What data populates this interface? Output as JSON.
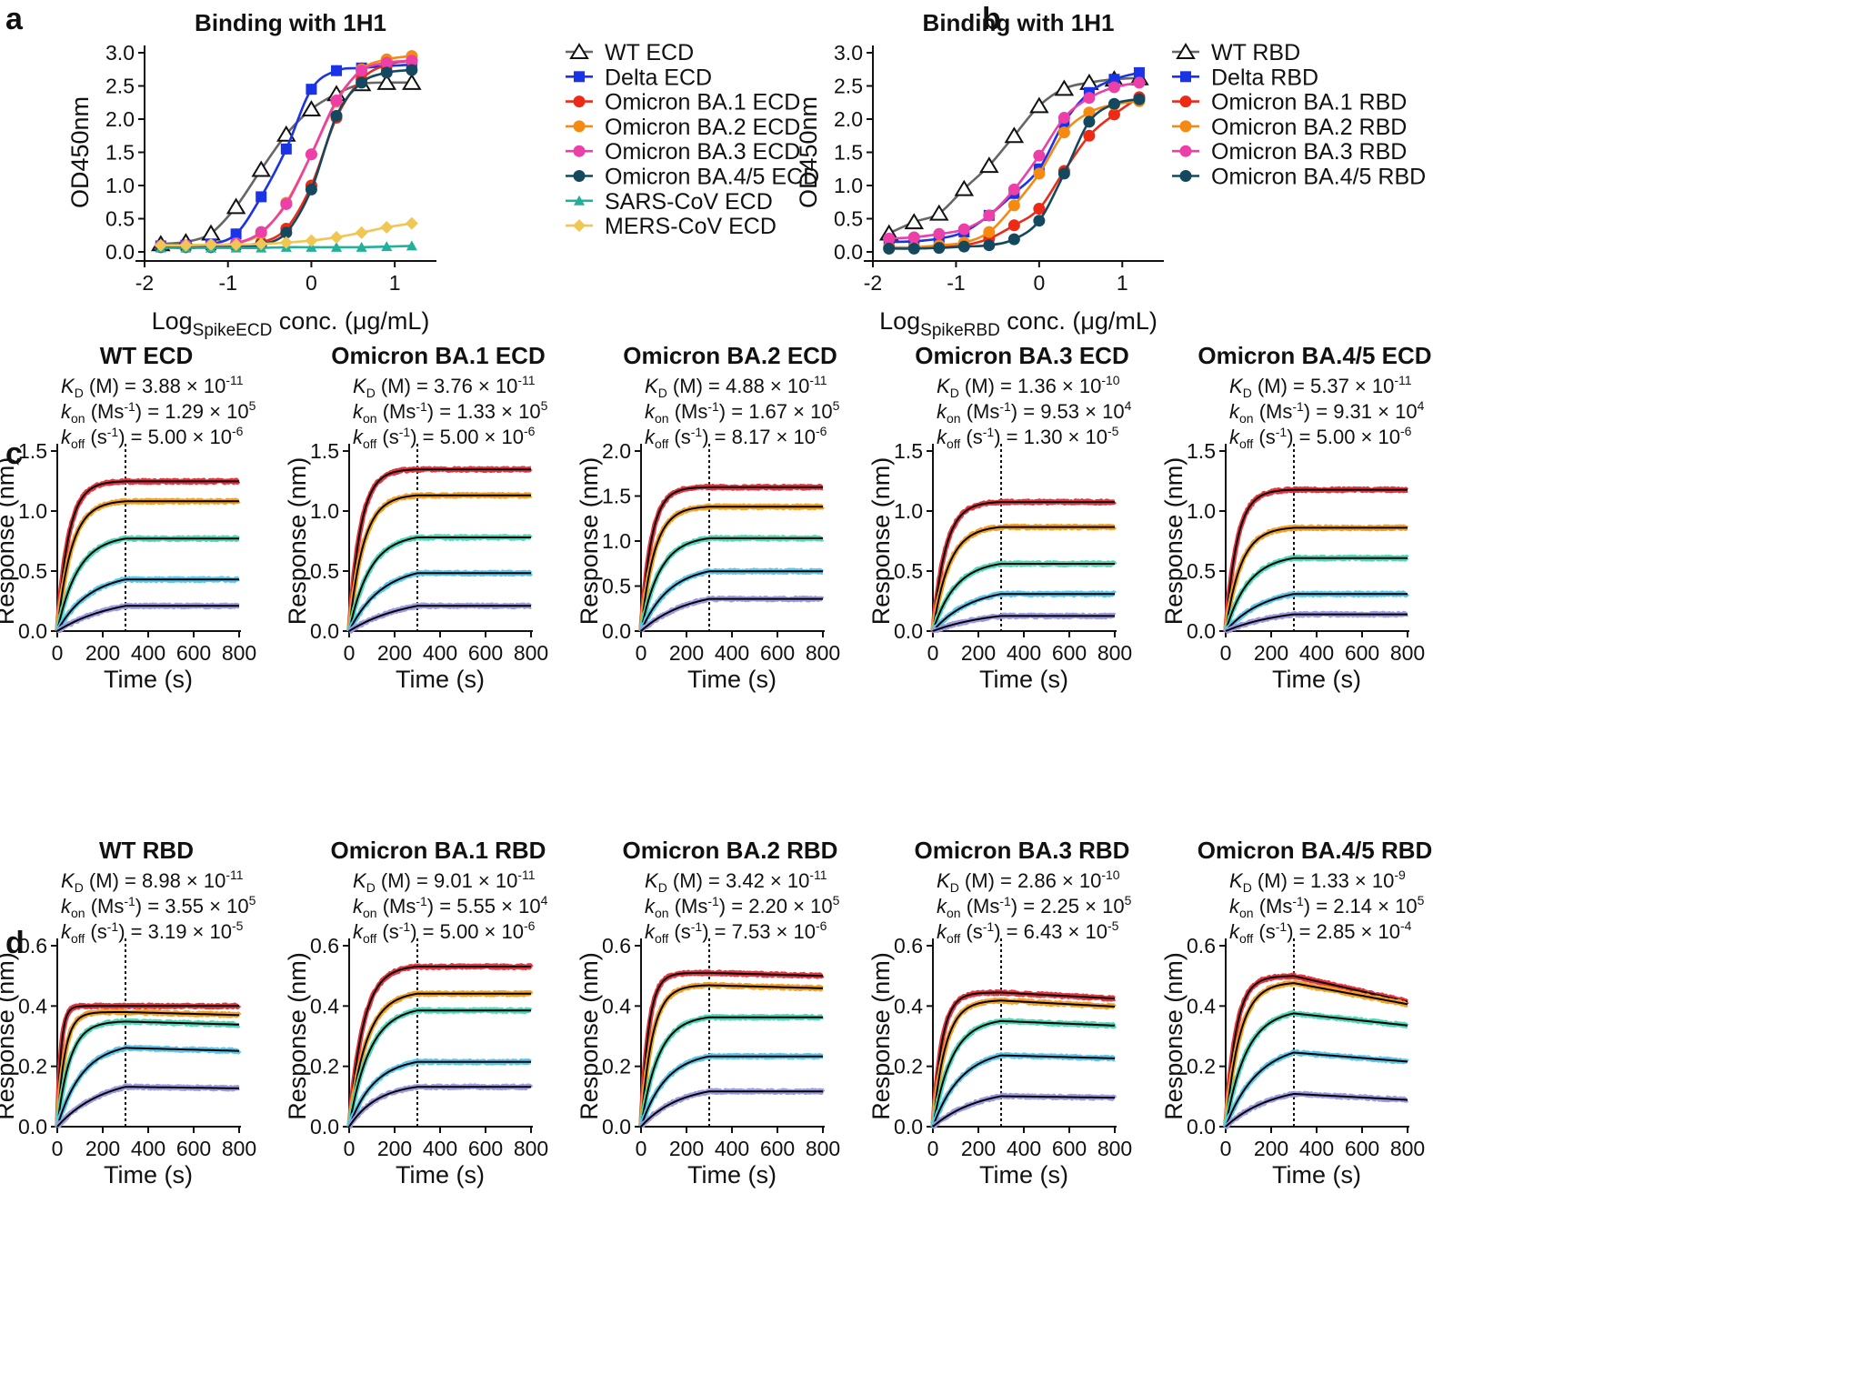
{
  "panel_labels": [
    "a",
    "b",
    "c",
    "d"
  ],
  "chart_data": [
    {
      "id": "a",
      "type": "line",
      "title": "Binding with 1H1",
      "xlabel_main": "Log",
      "xlabel_sub": "SpikeECD",
      "xlabel_tail": " conc. (μg/mL)",
      "ylabel": "OD450nm",
      "xlim": [
        -2,
        1.5
      ],
      "ylim": [
        0,
        3.0
      ],
      "xticks": [
        "-2",
        "-1",
        "0",
        "1"
      ],
      "yticks": [
        "0.0",
        "0.5",
        "1.0",
        "1.5",
        "2.0",
        "2.5",
        "3.0"
      ],
      "x": [
        -1.806,
        -1.505,
        -1.204,
        -0.903,
        -0.602,
        -0.301,
        0.0,
        0.301,
        0.602,
        0.903,
        1.204
      ],
      "series": [
        {
          "name": "WT ECD",
          "color": "#666666",
          "marker": "triangle-open",
          "values": [
            0.12,
            0.15,
            0.28,
            0.68,
            1.24,
            1.77,
            2.15,
            2.38,
            2.53,
            2.55,
            2.55
          ]
        },
        {
          "name": "Delta ECD",
          "color": "#1a33e6",
          "marker": "square",
          "values": [
            0.09,
            0.1,
            0.12,
            0.27,
            0.83,
            1.55,
            2.45,
            2.73,
            2.77,
            2.8,
            2.82
          ]
        },
        {
          "name": "Omicron BA.1 ECD",
          "color": "#ee2a17",
          "marker": "circle",
          "values": [
            0.08,
            0.08,
            0.09,
            0.1,
            0.14,
            0.35,
            1.0,
            2.02,
            2.6,
            2.82,
            2.88
          ]
        },
        {
          "name": "Omicron BA.2 ECD",
          "color": "#f48a12",
          "marker": "circle",
          "values": [
            0.08,
            0.09,
            0.1,
            0.13,
            0.28,
            0.74,
            1.47,
            2.26,
            2.75,
            2.9,
            2.95
          ]
        },
        {
          "name": "Omicron BA.3 ECD",
          "color": "#ec3fa7",
          "marker": "circle",
          "values": [
            0.09,
            0.1,
            0.1,
            0.13,
            0.3,
            0.72,
            1.47,
            2.28,
            2.73,
            2.85,
            2.88
          ]
        },
        {
          "name": "Omicron BA.4/5 ECD",
          "color": "#14485f",
          "marker": "circle",
          "values": [
            0.07,
            0.07,
            0.07,
            0.08,
            0.11,
            0.29,
            0.94,
            2.05,
            2.55,
            2.7,
            2.74
          ]
        },
        {
          "name": "SARS-CoV ECD",
          "color": "#22b09a",
          "marker": "triangle",
          "values": [
            0.06,
            0.06,
            0.06,
            0.06,
            0.06,
            0.07,
            0.07,
            0.07,
            0.07,
            0.08,
            0.09
          ]
        },
        {
          "name": "MERS-CoV ECD",
          "color": "#f0c654",
          "marker": "diamond",
          "values": [
            0.1,
            0.1,
            0.11,
            0.11,
            0.12,
            0.14,
            0.17,
            0.22,
            0.29,
            0.37,
            0.43
          ]
        }
      ]
    },
    {
      "id": "b",
      "type": "line",
      "title": "Binding with 1H1",
      "xlabel_main": "Log",
      "xlabel_sub": "SpikeRBD",
      "xlabel_tail": " conc. (μg/mL)",
      "ylabel": "OD450nm",
      "xlim": [
        -2,
        1.5
      ],
      "ylim": [
        0,
        3.0
      ],
      "xticks": [
        "-2",
        "-1",
        "0",
        "1"
      ],
      "yticks": [
        "0.0",
        "0.5",
        "1.0",
        "1.5",
        "2.0",
        "2.5",
        "3.0"
      ],
      "x": [
        -1.806,
        -1.505,
        -1.204,
        -0.903,
        -0.602,
        -0.301,
        0.0,
        0.301,
        0.602,
        0.903,
        1.204
      ],
      "series": [
        {
          "name": "WT RBD",
          "color": "#666666",
          "marker": "triangle-open",
          "values": [
            0.28,
            0.45,
            0.58,
            0.95,
            1.3,
            1.75,
            2.2,
            2.46,
            2.55,
            2.6,
            2.62
          ]
        },
        {
          "name": "Delta RBD",
          "color": "#1a33e6",
          "marker": "square",
          "values": [
            0.15,
            0.16,
            0.2,
            0.3,
            0.55,
            0.88,
            1.25,
            1.95,
            2.4,
            2.6,
            2.7
          ]
        },
        {
          "name": "Omicron BA.1 RBD",
          "color": "#ee2a17",
          "marker": "circle",
          "values": [
            0.05,
            0.06,
            0.07,
            0.1,
            0.2,
            0.4,
            0.65,
            1.22,
            1.75,
            2.07,
            2.33
          ]
        },
        {
          "name": "Omicron BA.2 RBD",
          "color": "#f48a12",
          "marker": "circle",
          "values": [
            0.07,
            0.07,
            0.1,
            0.14,
            0.3,
            0.7,
            1.18,
            1.8,
            2.1,
            2.22,
            2.27
          ]
        },
        {
          "name": "Omicron BA.3 RBD",
          "color": "#ec3fa7",
          "marker": "circle",
          "values": [
            0.2,
            0.22,
            0.27,
            0.34,
            0.55,
            0.94,
            1.45,
            2.02,
            2.32,
            2.48,
            2.55
          ]
        },
        {
          "name": "Omicron BA.4/5 RBD",
          "color": "#14485f",
          "marker": "circle",
          "values": [
            0.05,
            0.05,
            0.06,
            0.08,
            0.1,
            0.19,
            0.47,
            1.18,
            1.96,
            2.23,
            2.3
          ]
        }
      ]
    },
    {
      "id": "c1",
      "type": "line",
      "title": "WT ECD",
      "kd": "3.88 × 10",
      "kd_exp": "-11",
      "kon": "1.29 × 10",
      "kon_exp": "5",
      "koff": "5.00 × 10",
      "koff_exp": "-6",
      "ylim": [
        0,
        1.5
      ],
      "yticks": [
        "0.0",
        "0.5",
        "1.0",
        "1.5"
      ],
      "xlim": [
        0,
        800
      ],
      "xticks": [
        "0",
        "200",
        "400",
        "600",
        "800"
      ],
      "xlabel": "Time (s)",
      "ylabel": "Response (nm)",
      "dissociation_start": 300,
      "plateaus": [
        1.25,
        1.09,
        0.8,
        0.49,
        0.3
      ],
      "kobs": [
        0.02,
        0.016,
        0.011,
        0.007,
        0.004
      ],
      "offset": [
        0,
        0,
        0,
        0,
        0
      ],
      "drift": [
        0,
        0,
        0,
        0,
        0
      ]
    },
    {
      "id": "c2",
      "type": "line",
      "title": "Omicron BA.1 ECD",
      "kd": "3.76 × 10",
      "kd_exp": "-11",
      "kon": "1.33 × 10",
      "kon_exp": "5",
      "koff": " 5.00 × 10",
      "koff_exp": "-6",
      "ylim": [
        0,
        1.5
      ],
      "yticks": [
        "0.0",
        "0.5",
        "1.0",
        "1.5"
      ],
      "xlim": [
        0,
        800
      ],
      "xticks": [
        "0",
        "200",
        "400",
        "600",
        "800"
      ],
      "xlabel": "Time (s)",
      "ylabel": "Response (nm)",
      "dissociation_start": 300,
      "plateaus": [
        1.35,
        1.14,
        0.81,
        0.55,
        0.3
      ],
      "kobs": [
        0.02,
        0.016,
        0.011,
        0.007,
        0.004
      ],
      "offset": [
        0,
        0,
        0,
        0,
        0
      ],
      "drift": [
        0,
        0,
        0,
        0,
        0
      ]
    },
    {
      "id": "c3",
      "type": "line",
      "title": "Omicron BA.2 ECD",
      "kd": "4.88 × 10",
      "kd_exp": "-11",
      "kon": "1.67 × 10",
      "kon_exp": "5",
      "koff": "8.17 × 10",
      "koff_exp": "-6",
      "ylim": [
        0,
        2.0
      ],
      "yticks": [
        "0.0",
        "0.5",
        "1.0",
        "1.5",
        "2.0"
      ],
      "xlim": [
        0,
        800
      ],
      "xticks": [
        "0",
        "200",
        "400",
        "600",
        "800"
      ],
      "xlabel": "Time (s)",
      "ylabel": "Response (nm)",
      "dissociation_start": 300,
      "plateaus": [
        1.6,
        1.39,
        1.06,
        0.73,
        0.46
      ],
      "kobs": [
        0.022,
        0.017,
        0.012,
        0.008,
        0.005
      ],
      "offset": [
        0,
        0,
        0,
        0,
        0
      ],
      "drift": [
        0,
        0,
        0,
        0,
        0
      ]
    },
    {
      "id": "c4",
      "type": "line",
      "title": "Omicron BA.3 ECD",
      "kd": "1.36 × 10",
      "kd_exp": "-10",
      "kon": "9.53 × 10",
      "kon_exp": "4",
      "koff": "1.30 × 10",
      "koff_exp": "-5",
      "ylim": [
        0,
        1.5
      ],
      "yticks": [
        "0.0",
        "0.5",
        "1.0",
        "1.5"
      ],
      "xlim": [
        0,
        800
      ],
      "xticks": [
        "0",
        "200",
        "400",
        "600",
        "800"
      ],
      "xlabel": "Time (s)",
      "ylabel": "Response (nm)",
      "dissociation_start": 300,
      "plateaus": [
        1.08,
        0.88,
        0.59,
        0.37,
        0.18
      ],
      "kobs": [
        0.018,
        0.014,
        0.01,
        0.006,
        0.004
      ],
      "offset": [
        0,
        0,
        0,
        0,
        0
      ],
      "drift": [
        0,
        0,
        0,
        0,
        0
      ]
    },
    {
      "id": "c5",
      "type": "line",
      "title": "Omicron BA.4/5 ECD",
      "kd": "5.37 × 10",
      "kd_exp": "-11",
      "kon": "9.31 × 10",
      "kon_exp": "4",
      "koff": " 5.00 × 10",
      "koff_exp": "-6",
      "ylim": [
        0,
        1.5
      ],
      "yticks": [
        "0.0",
        "0.5",
        "1.0",
        "1.5"
      ],
      "xlim": [
        0,
        800
      ],
      "xticks": [
        "0",
        "200",
        "400",
        "600",
        "800"
      ],
      "xlabel": "Time (s)",
      "ylabel": "Response (nm)",
      "dissociation_start": 300,
      "plateaus": [
        1.18,
        0.87,
        0.64,
        0.37,
        0.2
      ],
      "kobs": [
        0.02,
        0.015,
        0.01,
        0.006,
        0.004
      ],
      "offset": [
        0,
        0,
        0,
        0,
        0
      ],
      "drift": [
        0,
        0,
        0,
        0,
        0
      ]
    },
    {
      "id": "d1",
      "type": "line",
      "title": "WT RBD",
      "kd": "8.98 × 10",
      "kd_exp": "-11",
      "kon": "3.55 × 10",
      "kon_exp": "5",
      "koff": "3.19 × 10",
      "koff_exp": "-5",
      "ylim": [
        0,
        0.6
      ],
      "yticks": [
        "0.0",
        "0.2",
        "0.4",
        "0.6"
      ],
      "xlim": [
        0,
        800
      ],
      "xticks": [
        "0",
        "200",
        "400",
        "600",
        "800"
      ],
      "xlabel": "Time (s)",
      "ylabel": "Response (nm)",
      "dissociation_start": 300,
      "plateaus": [
        0.4,
        0.38,
        0.35,
        0.28,
        0.17
      ],
      "kobs": [
        0.06,
        0.03,
        0.018,
        0.009,
        0.005
      ],
      "offset": [
        0,
        0,
        0,
        0,
        0
      ],
      "drift": [
        0.0,
        -0.01,
        -0.01,
        -0.01,
        -0.005
      ]
    },
    {
      "id": "d2",
      "type": "line",
      "title": "Omicron BA.1 RBD",
      "kd": "9.01 × 10",
      "kd_exp": "-11",
      "kon": "5.55 × 10",
      "kon_exp": "4",
      "koff": "5.00 × 10",
      "koff_exp": "-6",
      "ylim": [
        0,
        0.6
      ],
      "yticks": [
        "0.0",
        "0.2",
        "0.4",
        "0.6"
      ],
      "xlim": [
        0,
        800
      ],
      "xticks": [
        "0",
        "200",
        "400",
        "600",
        "800"
      ],
      "xlabel": "Time (s)",
      "ylabel": "Response (nm)",
      "dissociation_start": 300,
      "plateaus": [
        0.535,
        0.45,
        0.4,
        0.23,
        0.145
      ],
      "kobs": [
        0.016,
        0.013,
        0.011,
        0.009,
        0.008
      ],
      "offset": [
        0,
        0,
        0,
        0,
        0
      ],
      "drift": [
        0,
        0,
        0,
        0,
        0
      ]
    },
    {
      "id": "d3",
      "type": "line",
      "title": "Omicron BA.2 RBD",
      "kd": "3.42 × 10",
      "kd_exp": "-11",
      "kon": "2.20 × 10",
      "kon_exp": "5",
      "koff": "7.53 × 10",
      "koff_exp": "-6",
      "ylim": [
        0,
        0.6
      ],
      "yticks": [
        "0.0",
        "0.2",
        "0.4",
        "0.6"
      ],
      "xlim": [
        0,
        800
      ],
      "xticks": [
        "0",
        "200",
        "400",
        "600",
        "800"
      ],
      "xlabel": "Time (s)",
      "ylabel": "Response (nm)",
      "dissociation_start": 300,
      "plateaus": [
        0.51,
        0.47,
        0.37,
        0.25,
        0.14
      ],
      "kobs": [
        0.03,
        0.02,
        0.013,
        0.009,
        0.006
      ],
      "offset": [
        0,
        0,
        0,
        0,
        0
      ],
      "drift": [
        -0.01,
        -0.01,
        0,
        0,
        0
      ]
    },
    {
      "id": "d4",
      "type": "line",
      "title": "Omicron BA.3 RBD",
      "kd": "2.86 × 10",
      "kd_exp": "-10",
      "kon": "2.25 × 10",
      "kon_exp": "5",
      "koff": "6.43 × 10",
      "koff_exp": "-5",
      "ylim": [
        0,
        0.6
      ],
      "yticks": [
        "0.0",
        "0.2",
        "0.4",
        "0.6"
      ],
      "xlim": [
        0,
        800
      ],
      "xticks": [
        "0",
        "200",
        "400",
        "600",
        "800"
      ],
      "xlabel": "Time (s)",
      "ylabel": "Response (nm)",
      "dissociation_start": 300,
      "plateaus": [
        0.445,
        0.42,
        0.36,
        0.26,
        0.13
      ],
      "kobs": [
        0.025,
        0.018,
        0.012,
        0.008,
        0.005
      ],
      "offset": [
        0,
        0,
        0,
        0,
        0
      ],
      "drift": [
        -0.02,
        -0.02,
        -0.015,
        -0.01,
        -0.005
      ]
    },
    {
      "id": "d5",
      "type": "line",
      "title": "Omicron BA.4/5 RBD",
      "kd": "1.33 × 10",
      "kd_exp": "-9",
      "kon": "2.14 × 10",
      "kon_exp": "5",
      "koff": "2.85 × 10",
      "koff_exp": "-4",
      "ylim": [
        0,
        0.6
      ],
      "yticks": [
        "0.0",
        "0.2",
        "0.4",
        "0.6"
      ],
      "xlim": [
        0,
        800
      ],
      "xticks": [
        "0",
        "200",
        "400",
        "600",
        "800"
      ],
      "xlabel": "Time (s)",
      "ylabel": "Response (nm)",
      "dissociation_start": 300,
      "plateaus": [
        0.5,
        0.48,
        0.39,
        0.28,
        0.14
      ],
      "kobs": [
        0.022,
        0.016,
        0.011,
        0.007,
        0.005
      ],
      "offset": [
        0,
        0,
        0,
        0,
        0
      ],
      "drift": [
        -0.085,
        -0.07,
        -0.04,
        -0.03,
        -0.02
      ]
    }
  ],
  "trace_colors": [
    "#e8333f",
    "#f5a020",
    "#4fd8b8",
    "#5bc6ec",
    "#9d9ae4"
  ],
  "fit_color": "#000000"
}
